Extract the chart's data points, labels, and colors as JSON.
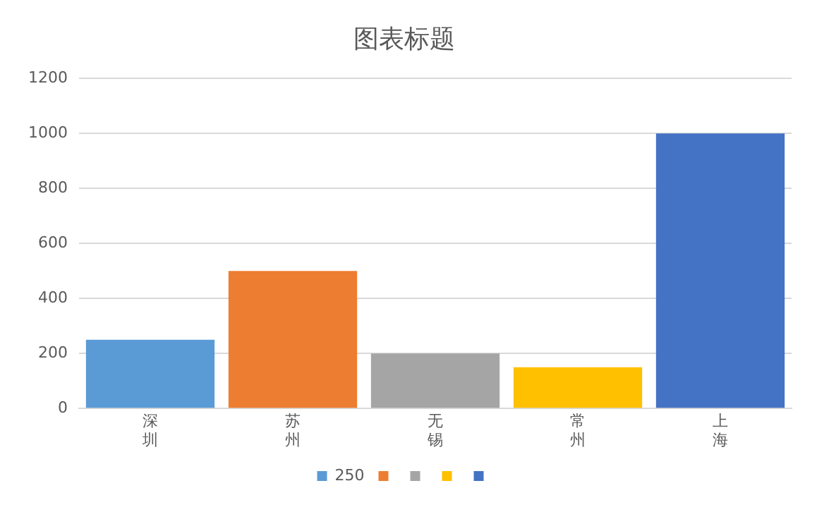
{
  "chart_data": {
    "type": "bar",
    "title": "图表标题",
    "categories": [
      "深圳",
      "苏州",
      "无锡",
      "常州",
      "上海"
    ],
    "series": [
      {
        "name": "250",
        "color": "#5b9bd5",
        "values": [
          250,
          null,
          null,
          null,
          null
        ]
      },
      {
        "color": "#ed7d31",
        "values": [
          null,
          500,
          null,
          null,
          null
        ]
      },
      {
        "color": "#a5a5a5",
        "values": [
          null,
          null,
          200,
          null,
          null
        ]
      },
      {
        "color": "#ffc000",
        "values": [
          null,
          null,
          null,
          150,
          null
        ]
      },
      {
        "color": "#4472c4",
        "values": [
          null,
          null,
          null,
          null,
          1000
        ]
      }
    ],
    "ylim": [
      0,
      1200
    ],
    "yticks": [
      0,
      200,
      400,
      600,
      800,
      1000,
      1200
    ],
    "grid": "y",
    "legend": "bottom"
  }
}
